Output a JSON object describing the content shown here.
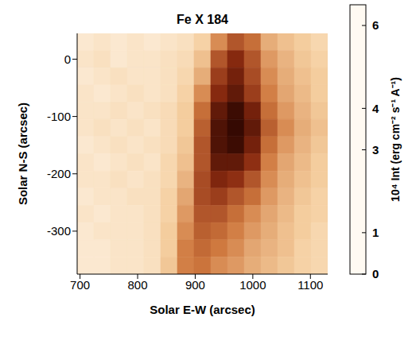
{
  "chart_data": {
    "type": "heatmap",
    "title": "Fe X 184",
    "xlabel": "Solar E-W (arcsec)",
    "ylabel": "Solar N-S (arcsec)",
    "xlim": [
      695,
      1130
    ],
    "ylim": [
      -375,
      45
    ],
    "xticks": [
      700,
      800,
      900,
      1000,
      1100
    ],
    "yticks": [
      -300,
      -200,
      -100,
      0
    ],
    "x_bins": [
      695,
      724,
      753,
      782,
      811,
      840,
      869,
      898,
      927,
      956,
      985,
      1014,
      1043,
      1072,
      1101,
      1130
    ],
    "y_bins": [
      45,
      15,
      -15,
      -45,
      -75,
      -105,
      -135,
      -165,
      -195,
      -225,
      -255,
      -285,
      -315,
      -345,
      -375
    ],
    "z": [
      [
        0.4,
        0.5,
        0.4,
        0.5,
        0.4,
        0.5,
        0.6,
        0.9,
        2.0,
        3.0,
        2.5,
        1.5,
        1.2,
        1.0,
        0.8
      ],
      [
        0.5,
        0.6,
        0.4,
        0.5,
        0.5,
        0.6,
        0.7,
        1.2,
        3.0,
        4.0,
        3.0,
        1.8,
        1.4,
        1.1,
        0.9
      ],
      [
        0.4,
        0.5,
        0.6,
        0.5,
        0.5,
        0.6,
        0.8,
        1.5,
        3.5,
        4.5,
        3.2,
        2.0,
        1.5,
        1.2,
        1.0
      ],
      [
        0.5,
        0.4,
        0.5,
        0.6,
        0.5,
        0.6,
        0.9,
        2.0,
        4.0,
        5.0,
        3.5,
        2.2,
        1.6,
        1.3,
        1.0
      ],
      [
        0.5,
        0.5,
        0.6,
        0.5,
        0.6,
        0.7,
        1.0,
        2.5,
        5.0,
        6.0,
        4.5,
        2.5,
        1.8,
        1.4,
        1.1
      ],
      [
        0.5,
        0.6,
        0.5,
        0.6,
        0.5,
        0.7,
        1.0,
        2.8,
        5.5,
        6.2,
        5.0,
        2.8,
        2.0,
        1.5,
        1.2
      ],
      [
        0.4,
        0.5,
        0.6,
        0.5,
        0.6,
        0.7,
        1.1,
        3.0,
        5.5,
        6.0,
        4.5,
        2.5,
        1.8,
        1.4,
        1.1
      ],
      [
        0.5,
        0.4,
        0.5,
        0.6,
        0.5,
        0.8,
        1.2,
        3.0,
        5.0,
        5.0,
        3.8,
        2.2,
        1.6,
        1.3,
        1.0
      ],
      [
        0.5,
        0.5,
        0.6,
        0.5,
        0.6,
        0.8,
        1.4,
        3.2,
        4.2,
        3.8,
        3.0,
        2.0,
        1.5,
        1.2,
        1.0
      ],
      [
        0.4,
        0.5,
        0.5,
        0.6,
        0.6,
        0.9,
        1.6,
        3.2,
        3.5,
        3.0,
        2.5,
        1.8,
        1.4,
        1.1,
        0.9
      ],
      [
        0.5,
        0.4,
        0.5,
        0.5,
        0.6,
        0.9,
        1.8,
        3.0,
        3.0,
        2.5,
        2.0,
        1.6,
        1.3,
        1.0,
        0.9
      ],
      [
        0.4,
        0.5,
        0.5,
        0.5,
        0.6,
        1.0,
        2.0,
        2.8,
        2.6,
        2.2,
        1.8,
        1.5,
        1.2,
        1.0,
        0.8
      ],
      [
        0.4,
        0.4,
        0.5,
        0.5,
        0.6,
        1.0,
        2.2,
        2.6,
        2.3,
        2.0,
        1.6,
        1.4,
        1.2,
        0.9,
        0.8
      ],
      [
        0.4,
        0.4,
        0.5,
        0.5,
        0.6,
        1.1,
        2.2,
        2.4,
        2.0,
        1.8,
        1.5,
        1.3,
        1.1,
        0.9,
        0.8
      ]
    ],
    "colorbar": {
      "range": [
        0,
        6.5
      ],
      "ticks": [
        0,
        1,
        3,
        4,
        6
      ],
      "label": "10⁴ Int (erg cm⁻² s⁻¹ A⁻¹)"
    }
  }
}
